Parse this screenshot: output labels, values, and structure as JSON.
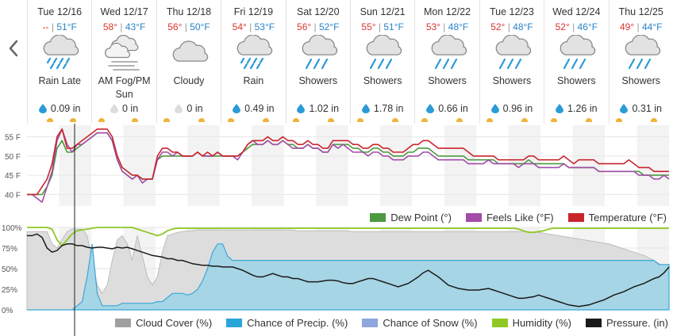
{
  "nav": {
    "prev_icon": "chevron-left-icon"
  },
  "days": [
    {
      "date": "Tue 12/16",
      "hi": "--",
      "lo": "51°F",
      "icon": "rain-icon",
      "cond": "Rain Late",
      "precip": "0.09 in",
      "drop": "filled"
    },
    {
      "date": "Wed 12/17",
      "hi": "58°",
      "lo": "43°F",
      "icon": "fog-sun-icon",
      "cond": "AM Fog/PM Sun",
      "precip": "0 in",
      "drop": "empty"
    },
    {
      "date": "Thu 12/18",
      "hi": "56°",
      "lo": "50°F",
      "icon": "cloudy-icon",
      "cond": "Cloudy",
      "precip": "0 in",
      "drop": "empty"
    },
    {
      "date": "Fri 12/19",
      "hi": "54°",
      "lo": "53°F",
      "icon": "rain-icon",
      "cond": "Rain",
      "precip": "0.49 in",
      "drop": "filled"
    },
    {
      "date": "Sat 12/20",
      "hi": "56°",
      "lo": "52°F",
      "icon": "showers-icon",
      "cond": "Showers",
      "precip": "1.02 in",
      "drop": "filled"
    },
    {
      "date": "Sun 12/21",
      "hi": "55°",
      "lo": "51°F",
      "icon": "showers-icon",
      "cond": "Showers",
      "precip": "1.78 in",
      "drop": "filled"
    },
    {
      "date": "Mon 12/22",
      "hi": "53°",
      "lo": "48°F",
      "icon": "showers-icon",
      "cond": "Showers",
      "precip": "0.66 in",
      "drop": "filled"
    },
    {
      "date": "Tue 12/23",
      "hi": "52°",
      "lo": "48°F",
      "icon": "showers-icon",
      "cond": "Showers",
      "precip": "0.96 in",
      "drop": "filled"
    },
    {
      "date": "Wed 12/24",
      "hi": "52°",
      "lo": "46°F",
      "icon": "showers-icon",
      "cond": "Showers",
      "precip": "1.26 in",
      "drop": "filled"
    },
    {
      "date": "Thu 12/25",
      "hi": "49°",
      "lo": "44°F",
      "icon": "showers-icon",
      "cond": "Showers",
      "precip": "0.31 in",
      "drop": "filled"
    }
  ],
  "colors": {
    "hi": "#d9342b",
    "lo": "#2a84c6",
    "dew_point": "#4c9a3f",
    "feels_like": "#a24ca8",
    "temperature": "#c9252c",
    "cloud_cover": "#c8c8c8",
    "precip_chance": "#5bb5d6",
    "snow_chance": "#a1b8e0",
    "humidity": "#8fc823",
    "pressure": "#1a1a1a",
    "sun": "#f0b43a",
    "drop": "#2b9bd8"
  },
  "chart_data": [
    {
      "type": "line",
      "title": "",
      "ylabel": "",
      "y_ticks": [
        "55 F",
        "50 F",
        "45 F",
        "40 F"
      ],
      "ylim": [
        37,
        58
      ],
      "x_days": 10,
      "series": [
        {
          "name": "Temperature (°F)",
          "values": [
            40,
            40,
            40,
            42,
            44,
            48,
            55,
            57,
            52,
            52,
            53,
            54,
            55,
            56,
            57,
            57,
            57,
            55,
            50,
            47,
            46,
            45,
            45,
            44,
            44,
            44,
            50,
            52,
            52,
            51,
            51,
            50,
            50,
            50,
            51,
            50,
            51,
            50,
            51,
            50,
            50,
            50,
            50,
            51,
            53,
            54,
            54,
            54,
            55,
            54,
            54,
            55,
            54,
            54,
            53,
            53,
            54,
            53,
            53,
            52,
            52,
            54,
            54,
            54,
            54,
            53,
            53,
            52,
            52,
            53,
            53,
            52,
            52,
            51,
            51,
            51,
            52,
            53,
            53,
            54,
            54,
            53,
            52,
            52,
            52,
            52,
            52,
            52,
            51,
            50,
            50,
            50,
            50,
            50,
            49,
            49,
            49,
            49,
            49,
            49,
            50,
            50,
            49,
            49,
            49,
            49,
            49,
            50,
            49,
            48,
            49,
            49,
            49,
            49,
            48,
            48,
            48,
            48,
            48,
            48,
            49,
            48,
            47,
            47,
            47,
            46,
            46,
            46,
            46
          ]
        },
        {
          "name": "Feels Like (°F)",
          "values": [
            40,
            40,
            39,
            38,
            42,
            46,
            54,
            57,
            53,
            51,
            53,
            53,
            54,
            55,
            56,
            56,
            56,
            54,
            49,
            46,
            45,
            44,
            45,
            43,
            44,
            44,
            49,
            51,
            51,
            50,
            51,
            50,
            50,
            50,
            51,
            50,
            50,
            50,
            51,
            50,
            50,
            50,
            49,
            51,
            53,
            54,
            53,
            53,
            54,
            53,
            53,
            54,
            53,
            52,
            52,
            52,
            53,
            52,
            52,
            51,
            51,
            53,
            52,
            53,
            52,
            51,
            51,
            51,
            50,
            51,
            51,
            50,
            50,
            49,
            49,
            49,
            50,
            50,
            50,
            51,
            51,
            50,
            49,
            49,
            49,
            49,
            49,
            49,
            48,
            48,
            48,
            48,
            49,
            48,
            48,
            48,
            48,
            48,
            47,
            48,
            48,
            48,
            47,
            47,
            47,
            47,
            47,
            48,
            47,
            47,
            47,
            47,
            47,
            47,
            46,
            46,
            46,
            46,
            46,
            46,
            46,
            46,
            45,
            45,
            45,
            44,
            44,
            45,
            44
          ]
        },
        {
          "name": "Dew Point (°)",
          "values": [
            40,
            40,
            40,
            40,
            42,
            45,
            52,
            54,
            51,
            51,
            52,
            53,
            54,
            55,
            56,
            56,
            56,
            54,
            49,
            46,
            45,
            44,
            45,
            44,
            44,
            44,
            49,
            50,
            50,
            50,
            50,
            50,
            50,
            50,
            51,
            50,
            50,
            50,
            50,
            50,
            50,
            50,
            50,
            51,
            52,
            53,
            53,
            53,
            54,
            53,
            53,
            54,
            53,
            53,
            52,
            52,
            53,
            52,
            52,
            51,
            51,
            53,
            53,
            53,
            53,
            52,
            52,
            51,
            51,
            52,
            52,
            51,
            51,
            50,
            50,
            50,
            51,
            51,
            52,
            52,
            52,
            51,
            50,
            50,
            50,
            50,
            50,
            50,
            49,
            49,
            49,
            49,
            49,
            49,
            48,
            48,
            48,
            48,
            48,
            48,
            49,
            48,
            48,
            48,
            48,
            48,
            48,
            48,
            47,
            47,
            47,
            47,
            47,
            47,
            46,
            46,
            46,
            46,
            46,
            46,
            46,
            46,
            46,
            45,
            45,
            45,
            45,
            45,
            45
          ]
        }
      ]
    },
    {
      "type": "area",
      "title": "",
      "ylabel": "",
      "y_ticks": [
        "100%",
        "75%",
        "50%",
        "25%",
        "0%"
      ],
      "ylim": [
        0,
        100
      ],
      "x_days": 10,
      "series": [
        {
          "name": "Cloud Cover (%)",
          "values": [
            95,
            95,
            95,
            95,
            95,
            80,
            75,
            85,
            95,
            98,
            98,
            98,
            90,
            60,
            30,
            20,
            30,
            60,
            85,
            90,
            80,
            60,
            90,
            65,
            40,
            30,
            40,
            70,
            90,
            92,
            94,
            95,
            96,
            96,
            97,
            97,
            97,
            97,
            97,
            97,
            97,
            97,
            97,
            97,
            97,
            97,
            97,
            97,
            97,
            97,
            97,
            97,
            97,
            97,
            96,
            96,
            96,
            96,
            96,
            96,
            96,
            96,
            96,
            96,
            96,
            95,
            95,
            95,
            95,
            95,
            95,
            95,
            95,
            95,
            95,
            95,
            95,
            95,
            95,
            95,
            95,
            95,
            95,
            95,
            95,
            95,
            95,
            95,
            95,
            95,
            95,
            95,
            95,
            95,
            95,
            95,
            95,
            95,
            95,
            95,
            95,
            94,
            94,
            93,
            92,
            91,
            90,
            89,
            88,
            87,
            86,
            85,
            84,
            83,
            82,
            81,
            80,
            78,
            76,
            74,
            72,
            70,
            68,
            66,
            63,
            60,
            56,
            53,
            55
          ]
        },
        {
          "name": "Chance of Precip. (%)",
          "values": [
            0,
            0,
            0,
            0,
            0,
            0,
            0,
            0,
            0,
            0,
            5,
            10,
            40,
            80,
            20,
            5,
            5,
            5,
            5,
            8,
            8,
            8,
            8,
            8,
            8,
            8,
            10,
            10,
            15,
            20,
            20,
            20,
            18,
            20,
            25,
            35,
            50,
            70,
            80,
            80,
            65,
            60,
            60,
            60,
            60,
            60,
            60,
            60,
            60,
            60,
            60,
            60,
            60,
            60,
            60,
            60,
            60,
            60,
            60,
            60,
            60,
            60,
            60,
            60,
            60,
            60,
            60,
            60,
            60,
            60,
            60,
            60,
            60,
            60,
            60,
            60,
            60,
            60,
            60,
            60,
            60,
            60,
            60,
            60,
            60,
            60,
            60,
            60,
            60,
            60,
            60,
            60,
            60,
            60,
            60,
            60,
            60,
            60,
            60,
            60,
            60,
            60,
            60,
            60,
            60,
            60,
            60,
            60,
            60,
            60,
            60,
            60,
            60,
            60,
            60,
            60,
            60,
            60,
            60,
            60,
            60,
            60,
            60,
            60,
            60,
            60,
            55,
            55,
            55
          ]
        },
        {
          "name": "Chance of Snow (%)",
          "values": []
        },
        {
          "name": "Humidity (%)",
          "values": [
            100,
            100,
            100,
            100,
            100,
            98,
            85,
            78,
            85,
            92,
            96,
            97,
            98,
            99,
            100,
            100,
            100,
            100,
            100,
            100,
            100,
            100,
            98,
            96,
            94,
            92,
            90,
            92,
            96,
            98,
            99,
            99,
            99,
            99,
            99,
            99,
            99,
            99,
            99,
            99,
            99,
            99,
            99,
            99,
            99,
            99,
            99,
            99,
            99,
            99,
            99,
            99,
            99,
            99,
            99,
            99,
            99,
            99,
            99,
            99,
            99,
            99,
            99,
            99,
            99,
            99,
            99,
            99,
            99,
            99,
            99,
            99,
            99,
            99,
            99,
            99,
            99,
            99,
            99,
            99,
            99,
            99,
            99,
            99,
            99,
            99,
            99,
            99,
            99,
            99,
            99,
            99,
            99,
            99,
            99,
            99,
            99,
            99,
            98,
            96,
            94,
            94,
            95,
            96,
            98,
            99,
            99,
            99,
            99,
            99,
            99,
            99,
            99,
            99,
            99,
            99,
            99,
            99,
            99,
            99,
            99,
            99,
            99,
            99,
            99,
            99,
            99,
            99,
            99
          ]
        },
        {
          "name": "Pressure. (in)",
          "values": [
            90,
            90,
            92,
            88,
            75,
            70,
            72,
            78,
            80,
            80,
            78,
            78,
            76,
            75,
            76,
            76,
            75,
            74,
            76,
            75,
            76,
            74,
            72,
            70,
            68,
            66,
            65,
            64,
            62,
            62,
            60,
            60,
            58,
            56,
            55,
            54,
            54,
            53,
            53,
            52,
            52,
            52,
            50,
            48,
            45,
            42,
            40,
            40,
            42,
            44,
            42,
            40,
            40,
            38,
            38,
            36,
            34,
            34,
            34,
            35,
            36,
            36,
            35,
            33,
            32,
            32,
            34,
            36,
            38,
            38,
            36,
            34,
            32,
            30,
            28,
            30,
            32,
            36,
            40,
            45,
            48,
            44,
            40,
            35,
            30,
            28,
            26,
            25,
            24,
            24,
            24,
            25,
            26,
            24,
            22,
            20,
            18,
            16,
            14,
            14,
            15,
            16,
            18,
            16,
            14,
            12,
            10,
            8,
            6,
            5,
            4,
            5,
            6,
            8,
            10,
            12,
            15,
            18,
            20,
            22,
            25,
            28,
            30,
            32,
            35,
            38,
            40,
            45,
            52
          ]
        }
      ]
    }
  ],
  "legend_top": [
    {
      "label": "Dew Point (°)",
      "color": "#4c9a3f"
    },
    {
      "label": "Feels Like (°F)",
      "color": "#a24ca8"
    },
    {
      "label": "Temperature (°F)",
      "color": "#c9252c"
    }
  ],
  "legend_bottom": [
    {
      "label": "Cloud Cover (%)",
      "color": "#a0a0a0"
    },
    {
      "label": "Chance of Precip. (%)",
      "color": "#29a6d9"
    },
    {
      "label": "Chance of Snow (%)",
      "color": "#8da6df"
    },
    {
      "label": "Humidity (%)",
      "color": "#8fc823"
    },
    {
      "label": "Pressure. (in)",
      "color": "#1a1a1a"
    }
  ]
}
